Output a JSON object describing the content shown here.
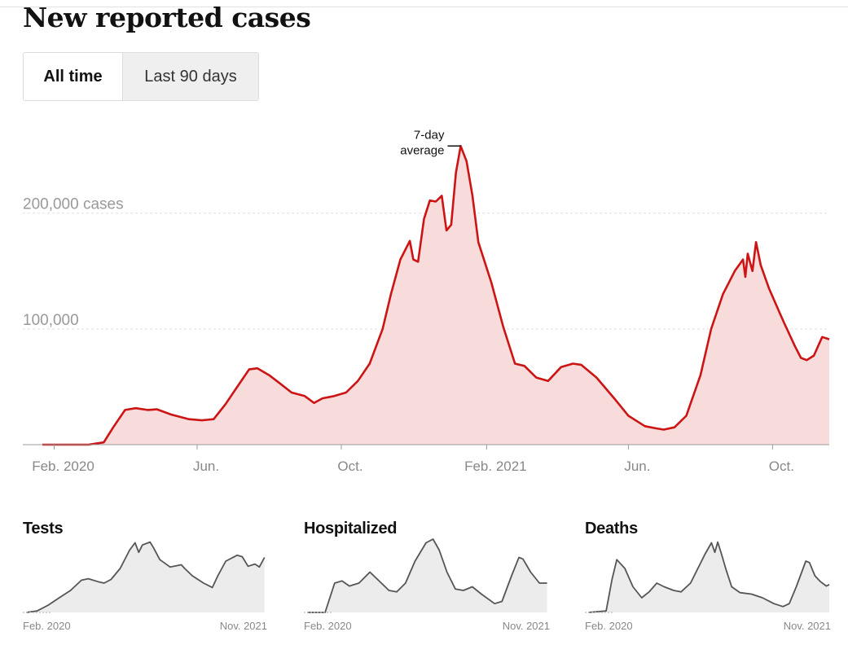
{
  "title": "New reported cases",
  "toggle": {
    "all_time": "All time",
    "last_90": "Last 90 days"
  },
  "colors": {
    "line": "#cc1414",
    "fill": "#f8dcdc",
    "small_line": "#555555",
    "small_fill": "#ececec",
    "axis": "#999999"
  },
  "chart_data": [
    {
      "type": "area",
      "title": "New reported cases",
      "annotation": {
        "line1": "7-day",
        "line2": "average"
      },
      "y_tick_labels": [
        "200,000 cases",
        "100,000"
      ],
      "y_ticks": [
        200000,
        100000
      ],
      "ylim": [
        0,
        280000
      ],
      "xlim": [
        "2020-01-22",
        "2021-11-18"
      ],
      "x_tick_labels": [
        "Feb. 2020",
        "Jun.",
        "Oct.",
        "Feb. 2021",
        "Jun.",
        "Oct."
      ],
      "x_ticks": [
        "2020-02-01",
        "2020-06-01",
        "2020-10-01",
        "2021-02-01",
        "2021-06-01",
        "2021-10-01"
      ],
      "grid": true,
      "series": [
        {
          "points": [
            [
              "2020-01-22",
              0
            ],
            [
              "2020-03-01",
              0
            ],
            [
              "2020-03-14",
              2000
            ],
            [
              "2020-03-22",
              15000
            ],
            [
              "2020-04-01",
              30000
            ],
            [
              "2020-04-10",
              31500
            ],
            [
              "2020-04-20",
              30000
            ],
            [
              "2020-04-28",
              30500
            ],
            [
              "2020-05-10",
              26000
            ],
            [
              "2020-05-25",
              22000
            ],
            [
              "2020-06-05",
              21000
            ],
            [
              "2020-06-15",
              22000
            ],
            [
              "2020-06-25",
              35000
            ],
            [
              "2020-07-05",
              50000
            ],
            [
              "2020-07-15",
              65000
            ],
            [
              "2020-07-22",
              66000
            ],
            [
              "2020-08-01",
              60000
            ],
            [
              "2020-08-10",
              53000
            ],
            [
              "2020-08-20",
              45000
            ],
            [
              "2020-08-31",
              42000
            ],
            [
              "2020-09-08",
              36000
            ],
            [
              "2020-09-15",
              40000
            ],
            [
              "2020-09-25",
              42000
            ],
            [
              "2020-10-05",
              45000
            ],
            [
              "2020-10-15",
              55000
            ],
            [
              "2020-10-25",
              70000
            ],
            [
              "2020-11-05",
              100000
            ],
            [
              "2020-11-12",
              130000
            ],
            [
              "2020-11-20",
              160000
            ],
            [
              "2020-11-28",
              176000
            ],
            [
              "2020-12-01",
              160000
            ],
            [
              "2020-12-05",
              158000
            ],
            [
              "2020-12-10",
              195000
            ],
            [
              "2020-12-15",
              211000
            ],
            [
              "2020-12-20",
              210000
            ],
            [
              "2020-12-25",
              215000
            ],
            [
              "2020-12-29",
              185000
            ],
            [
              "2021-01-02",
              190000
            ],
            [
              "2021-01-06",
              235000
            ],
            [
              "2021-01-10",
              258000
            ],
            [
              "2021-01-15",
              245000
            ],
            [
              "2021-01-20",
              215000
            ],
            [
              "2021-01-25",
              175000
            ],
            [
              "2021-02-05",
              140000
            ],
            [
              "2021-02-15",
              102000
            ],
            [
              "2021-02-25",
              70000
            ],
            [
              "2021-03-05",
              68000
            ],
            [
              "2021-03-15",
              58000
            ],
            [
              "2021-03-25",
              55000
            ],
            [
              "2021-04-05",
              67000
            ],
            [
              "2021-04-15",
              70000
            ],
            [
              "2021-04-22",
              69000
            ],
            [
              "2021-05-05",
              58000
            ],
            [
              "2021-05-20",
              40000
            ],
            [
              "2021-06-01",
              25000
            ],
            [
              "2021-06-15",
              16000
            ],
            [
              "2021-06-25",
              14000
            ],
            [
              "2021-07-01",
              13000
            ],
            [
              "2021-07-10",
              15000
            ],
            [
              "2021-07-20",
              25000
            ],
            [
              "2021-08-01",
              60000
            ],
            [
              "2021-08-10",
              100000
            ],
            [
              "2021-08-20",
              130000
            ],
            [
              "2021-08-30",
              150000
            ],
            [
              "2021-09-06",
              160000
            ],
            [
              "2021-09-08",
              145000
            ],
            [
              "2021-09-10",
              165000
            ],
            [
              "2021-09-14",
              150000
            ],
            [
              "2021-09-17",
              175000
            ],
            [
              "2021-09-21",
              155000
            ],
            [
              "2021-09-28",
              135000
            ],
            [
              "2021-10-10",
              107000
            ],
            [
              "2021-10-20",
              85000
            ],
            [
              "2021-10-25",
              75000
            ],
            [
              "2021-10-30",
              73000
            ],
            [
              "2021-11-05",
              77000
            ],
            [
              "2021-11-12",
              93000
            ],
            [
              "2021-11-18",
              91000
            ]
          ]
        }
      ]
    },
    {
      "type": "area",
      "title": "Tests",
      "xlim": [
        "2020-01-22",
        "2021-11-18"
      ],
      "x_tick_labels": [
        "Feb. 2020",
        "Nov. 2021"
      ],
      "ylim": [
        0,
        1
      ],
      "series": [
        {
          "points": [
            [
              "2020-02-01",
              0.0
            ],
            [
              "2020-03-01",
              0.02
            ],
            [
              "2020-04-01",
              0.1
            ],
            [
              "2020-05-01",
              0.2
            ],
            [
              "2020-06-01",
              0.3
            ],
            [
              "2020-07-01",
              0.44
            ],
            [
              "2020-07-20",
              0.46
            ],
            [
              "2020-08-15",
              0.42
            ],
            [
              "2020-09-01",
              0.4
            ],
            [
              "2020-09-20",
              0.45
            ],
            [
              "2020-10-15",
              0.6
            ],
            [
              "2020-11-10",
              0.85
            ],
            [
              "2020-11-25",
              0.95
            ],
            [
              "2020-12-05",
              0.82
            ],
            [
              "2020-12-15",
              0.92
            ],
            [
              "2021-01-05",
              0.96
            ],
            [
              "2021-01-15",
              0.88
            ],
            [
              "2021-02-01",
              0.72
            ],
            [
              "2021-03-01",
              0.62
            ],
            [
              "2021-04-01",
              0.65
            ],
            [
              "2021-04-10",
              0.6
            ],
            [
              "2021-05-01",
              0.5
            ],
            [
              "2021-06-01",
              0.4
            ],
            [
              "2021-06-25",
              0.34
            ],
            [
              "2021-07-10",
              0.5
            ],
            [
              "2021-08-01",
              0.7
            ],
            [
              "2021-09-01",
              0.78
            ],
            [
              "2021-09-15",
              0.76
            ],
            [
              "2021-10-01",
              0.63
            ],
            [
              "2021-10-20",
              0.66
            ],
            [
              "2021-11-01",
              0.62
            ],
            [
              "2021-11-15",
              0.75
            ]
          ]
        }
      ]
    },
    {
      "type": "area",
      "title": "Hospitalized",
      "xlim": [
        "2020-01-22",
        "2021-11-18"
      ],
      "x_tick_labels": [
        "Feb. 2020",
        "Nov. 2021"
      ],
      "ylim": [
        0,
        1
      ],
      "series": [
        {
          "points": [
            [
              "2020-02-01",
              0.0
            ],
            [
              "2020-03-20",
              0.0
            ],
            [
              "2020-04-15",
              0.4
            ],
            [
              "2020-05-05",
              0.43
            ],
            [
              "2020-05-25",
              0.36
            ],
            [
              "2020-06-20",
              0.4
            ],
            [
              "2020-07-20",
              0.55
            ],
            [
              "2020-08-10",
              0.45
            ],
            [
              "2020-09-10",
              0.3
            ],
            [
              "2020-10-01",
              0.28
            ],
            [
              "2020-10-25",
              0.4
            ],
            [
              "2020-11-20",
              0.7
            ],
            [
              "2020-12-20",
              0.95
            ],
            [
              "2021-01-08",
              1.0
            ],
            [
              "2021-01-25",
              0.85
            ],
            [
              "2021-02-15",
              0.55
            ],
            [
              "2021-03-10",
              0.32
            ],
            [
              "2021-04-01",
              0.3
            ],
            [
              "2021-04-25",
              0.35
            ],
            [
              "2021-05-20",
              0.25
            ],
            [
              "2021-06-25",
              0.12
            ],
            [
              "2021-07-15",
              0.15
            ],
            [
              "2021-08-10",
              0.5
            ],
            [
              "2021-08-30",
              0.75
            ],
            [
              "2021-09-10",
              0.73
            ],
            [
              "2021-10-01",
              0.55
            ],
            [
              "2021-10-25",
              0.4
            ],
            [
              "2021-11-15",
              0.4
            ]
          ]
        }
      ]
    },
    {
      "type": "area",
      "title": "Deaths",
      "xlim": [
        "2020-01-22",
        "2021-11-18"
      ],
      "x_tick_labels": [
        "Feb. 2020",
        "Nov. 2021"
      ],
      "ylim": [
        0,
        1
      ],
      "series": [
        {
          "points": [
            [
              "2020-02-01",
              0.0
            ],
            [
              "2020-03-20",
              0.02
            ],
            [
              "2020-04-05",
              0.45
            ],
            [
              "2020-04-18",
              0.72
            ],
            [
              "2020-05-10",
              0.6
            ],
            [
              "2020-06-01",
              0.35
            ],
            [
              "2020-06-25",
              0.2
            ],
            [
              "2020-07-15",
              0.28
            ],
            [
              "2020-08-05",
              0.4
            ],
            [
              "2020-08-25",
              0.35
            ],
            [
              "2020-09-20",
              0.3
            ],
            [
              "2020-10-10",
              0.28
            ],
            [
              "2020-11-05",
              0.4
            ],
            [
              "2020-11-25",
              0.6
            ],
            [
              "2020-12-15",
              0.8
            ],
            [
              "2021-01-01",
              0.95
            ],
            [
              "2021-01-10",
              0.82
            ],
            [
              "2021-01-18",
              0.96
            ],
            [
              "2021-01-28",
              0.8
            ],
            [
              "2021-02-10",
              0.58
            ],
            [
              "2021-02-25",
              0.35
            ],
            [
              "2021-03-20",
              0.27
            ],
            [
              "2021-04-20",
              0.25
            ],
            [
              "2021-05-20",
              0.2
            ],
            [
              "2021-06-20",
              0.12
            ],
            [
              "2021-07-15",
              0.08
            ],
            [
              "2021-08-01",
              0.12
            ],
            [
              "2021-08-20",
              0.35
            ],
            [
              "2021-09-15",
              0.7
            ],
            [
              "2021-09-25",
              0.68
            ],
            [
              "2021-10-10",
              0.5
            ],
            [
              "2021-10-25",
              0.42
            ],
            [
              "2021-11-10",
              0.36
            ],
            [
              "2021-11-18",
              0.38
            ]
          ]
        }
      ]
    }
  ]
}
